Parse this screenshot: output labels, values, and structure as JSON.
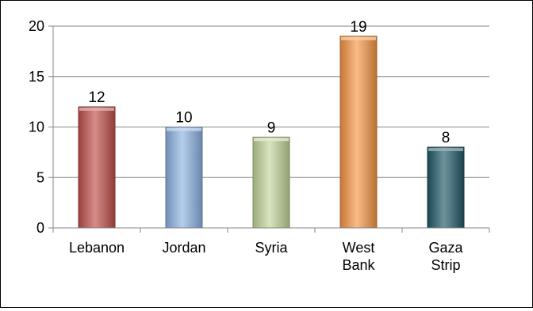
{
  "chart_data": {
    "type": "bar",
    "title": "",
    "xlabel": "",
    "ylabel": "",
    "categories": [
      "Lebanon",
      "Jordan",
      "Syria",
      "West Bank",
      "Gaza Strip"
    ],
    "category_lines": [
      [
        "Lebanon"
      ],
      [
        "Jordan"
      ],
      [
        "Syria"
      ],
      [
        "West",
        "Bank"
      ],
      [
        "Gaza",
        "Strip"
      ]
    ],
    "values": [
      12,
      10,
      9,
      19,
      8
    ],
    "data_labels": [
      "12",
      "10",
      "9",
      "19",
      "8"
    ],
    "ylim": [
      0,
      20
    ],
    "yticks": [
      0,
      5,
      10,
      15,
      20
    ],
    "ytick_labels": [
      "0",
      "5",
      "10",
      "15",
      "20"
    ],
    "grid": true,
    "legend": "none",
    "colors": [
      "#c0504d",
      "#8db3e2",
      "#c3d69b",
      "#f79646",
      "#215968"
    ]
  }
}
